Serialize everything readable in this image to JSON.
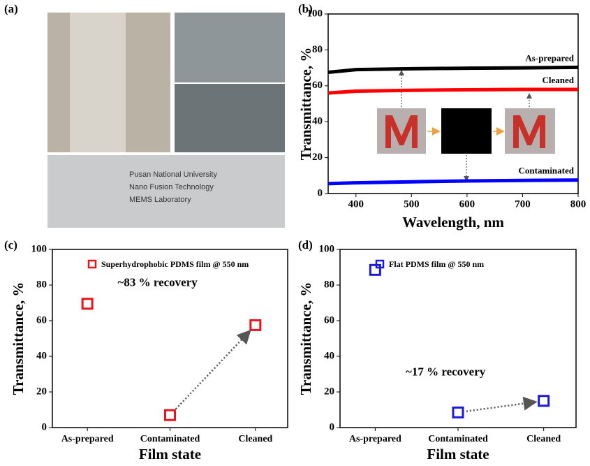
{
  "photo_panel": {
    "panel_label": "(a)",
    "caption_lines": [
      "Pusan National University",
      "Nano Fusion Technology",
      "MEMS Laboratory"
    ]
  },
  "chart_data": [
    {
      "type": "line",
      "panel_label": "(b)",
      "x_label": "Wavelength, nm",
      "y_label": "Transmittance, %",
      "x": [
        350,
        400,
        500,
        600,
        700,
        800
      ],
      "series": [
        {
          "name": "As-prepared",
          "color": "#000000",
          "values": [
            67.5,
            69,
            69.5,
            69.8,
            70,
            70.3
          ]
        },
        {
          "name": "Cleaned",
          "color": "#ff0000",
          "values": [
            56,
            57,
            57.5,
            57.8,
            58,
            58
          ]
        },
        {
          "name": "Contaminated",
          "color": "#0000ff",
          "values": [
            5.5,
            6,
            6.5,
            7,
            7.3,
            7.5
          ]
        }
      ],
      "xlim": [
        350,
        800
      ],
      "xticks": [
        400,
        500,
        600,
        700,
        800
      ],
      "ylim": [
        0,
        100
      ],
      "yticks": [
        0,
        20,
        40,
        60,
        80,
        100
      ]
    },
    {
      "type": "scatter",
      "panel_label": "(c)",
      "x_label": "Film state",
      "y_label": "Transmittance, %",
      "categories": [
        "As-prepared",
        "Contaminated",
        "Cleaned"
      ],
      "series": [
        {
          "name": "Superhydrophobic PDMS film @ 550 nm",
          "color": "#e8141b",
          "values": [
            69.5,
            7,
            57.5
          ]
        }
      ],
      "annotation": "~83 % recovery",
      "ylim": [
        0,
        100
      ],
      "yticks": [
        0,
        20,
        40,
        60,
        80,
        100
      ]
    },
    {
      "type": "scatter",
      "panel_label": "(d)",
      "x_label": "Film state",
      "y_label": "Transmittance, %",
      "categories": [
        "As-prepared",
        "Contaminated",
        "Cleaned"
      ],
      "series": [
        {
          "name": "Flat PDMS film @ 550 nm",
          "color": "#1a1adc",
          "values": [
            88.5,
            8.5,
            15
          ]
        }
      ],
      "annotation": "~17 % recovery",
      "ylim": [
        0,
        100
      ],
      "yticks": [
        0,
        20,
        40,
        60,
        80,
        100
      ]
    }
  ]
}
